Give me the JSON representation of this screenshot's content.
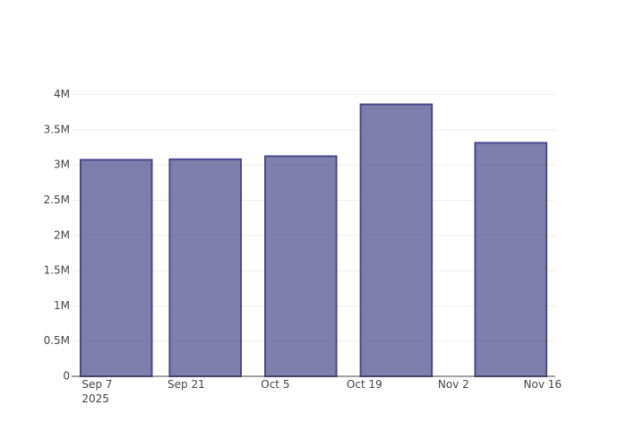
{
  "chart_data": {
    "type": "bar",
    "x": [
      "2025-09-10",
      "2025-09-24",
      "2025-10-09",
      "2025-10-24",
      "2025-11-11"
    ],
    "values": [
      3073000,
      3080000,
      3124000,
      3860000,
      3314000
    ],
    "color": "#48488c",
    "xlim": [
      "2025-09-03",
      "2025-11-18"
    ],
    "xticks": [
      {
        "value": "2025-09-07",
        "label": "Sep 7\n2025"
      },
      {
        "value": "2025-09-21",
        "label": "Sep 21"
      },
      {
        "value": "2025-10-05",
        "label": "Oct 5"
      },
      {
        "value": "2025-10-19",
        "label": "Oct 19"
      },
      {
        "value": "2025-11-02",
        "label": "Nov 2"
      },
      {
        "value": "2025-11-16",
        "label": "Nov 16"
      }
    ],
    "ylim": [
      0,
      4070000
    ],
    "yticks": [
      0,
      {
        "value": 500000,
        "label": "0.5M"
      },
      {
        "value": 1000000,
        "label": "1M"
      },
      {
        "value": 1500000,
        "label": "1.5M"
      },
      {
        "value": 2000000,
        "label": "2M"
      },
      {
        "value": 2500000,
        "label": "2.5M"
      },
      {
        "value": 3000000,
        "label": "3M"
      },
      {
        "value": 3500000,
        "label": "3.5M"
      },
      {
        "value": 4000000,
        "label": "4M"
      }
    ],
    "grid": true
  }
}
